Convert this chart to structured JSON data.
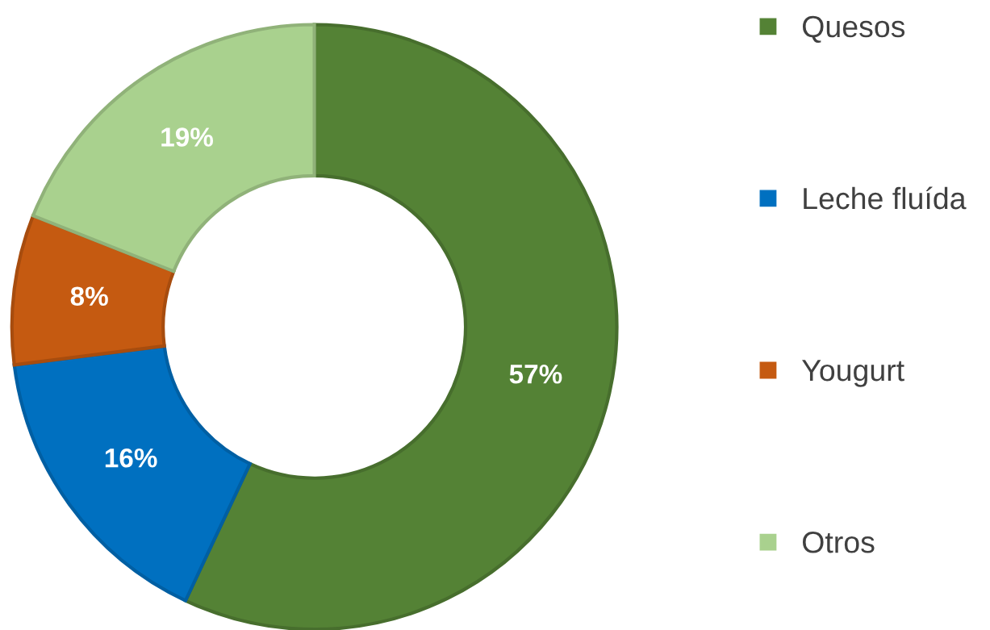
{
  "chart_data": {
    "type": "donut",
    "categories": [
      "Quesos",
      "Leche fluída",
      "Yougurt",
      "Otros"
    ],
    "values": [
      57,
      16,
      8,
      19
    ],
    "colors": [
      "#548235",
      "#0070c0",
      "#c55a11",
      "#a9d18e"
    ],
    "value_labels": [
      "57%",
      "16%",
      "8%",
      "19%"
    ],
    "legend": "right"
  }
}
